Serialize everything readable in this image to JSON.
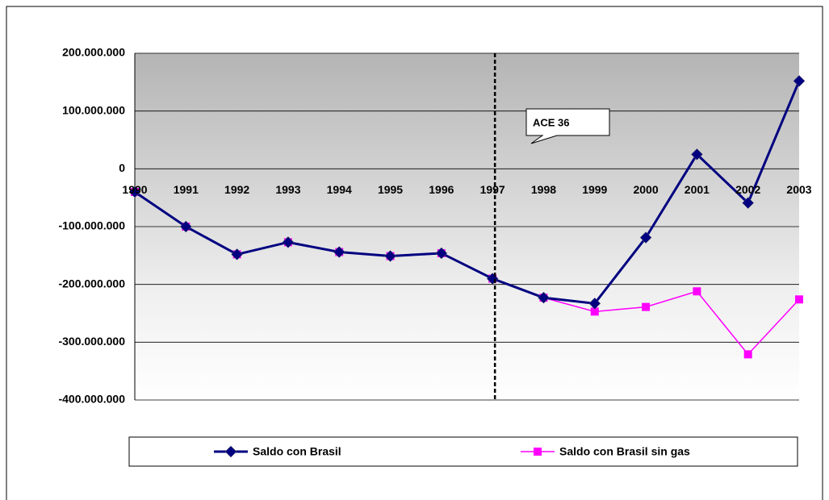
{
  "chart_data": {
    "type": "line",
    "categories": [
      "1990",
      "1991",
      "1992",
      "1993",
      "1994",
      "1995",
      "1996",
      "1997",
      "1998",
      "1999",
      "2000",
      "2001",
      "2002",
      "2003"
    ],
    "series": [
      {
        "name": "Saldo con Brasil",
        "color": "#000080",
        "marker": "diamond",
        "values": [
          -40000000,
          -100000000,
          -148000000,
          -127000000,
          -144000000,
          -151000000,
          -146000000,
          -190000000,
          -223000000,
          -233000000,
          -119000000,
          25000000,
          -59000000,
          152000000
        ]
      },
      {
        "name": "Saldo con Brasil sin gas",
        "color": "#ff00ff",
        "marker": "square",
        "values": [
          -40000000,
          -100000000,
          -148000000,
          -127000000,
          -144000000,
          -151000000,
          -146000000,
          -190000000,
          -223000000,
          -247000000,
          -239000000,
          -212000000,
          -321000000,
          -226000000
        ]
      }
    ],
    "ylim": [
      -400000000,
      200000000
    ],
    "yticks": [
      {
        "value": -400000000,
        "label": "-400.000.000"
      },
      {
        "value": -300000000,
        "label": "-300.000.000"
      },
      {
        "value": -200000000,
        "label": "-200.000.000"
      },
      {
        "value": -100000000,
        "label": "-100.000.000"
      },
      0,
      {
        "value": 100000000,
        "label": "100.000.000"
      },
      {
        "value": 200000000,
        "label": "200.000.000"
      }
    ],
    "grid": true,
    "annotation": "ACE 36",
    "legend": "bottom"
  }
}
